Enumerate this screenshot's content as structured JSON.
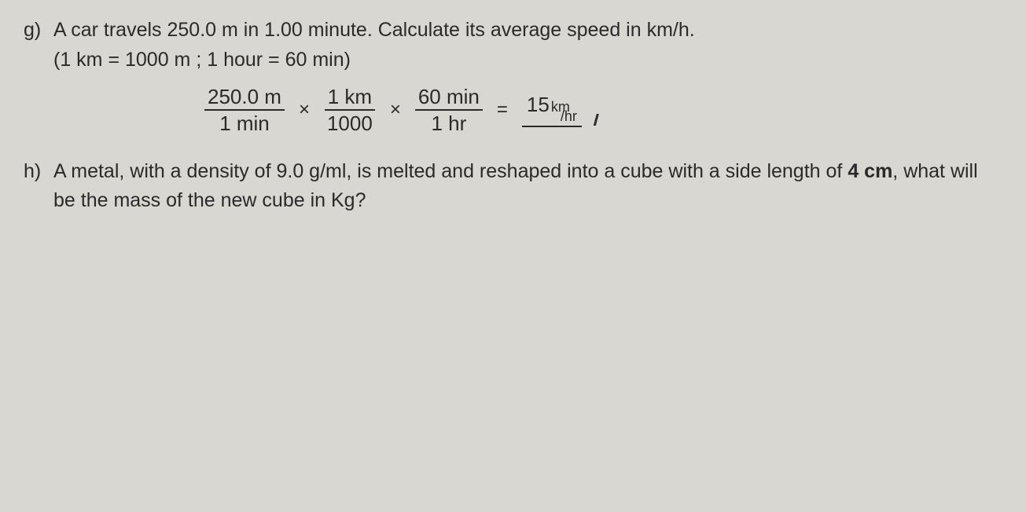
{
  "problems": {
    "g": {
      "label": "g)",
      "text": "A car travels 250.0 m in 1.00 minute. Calculate its average speed in km/h.",
      "sub_text": "(1   km = 1000 m ; 1 hour = 60 min)",
      "work": {
        "frac1": {
          "num": "250.0 m",
          "den": "1 min"
        },
        "op1": "×",
        "frac2": {
          "num": "1 km",
          "den": "1000"
        },
        "op2": "×",
        "frac3": {
          "num": "60 min",
          "den": "1 hr"
        },
        "eq": "=",
        "result_val": "15",
        "result_unit_top": "km",
        "result_unit_bot": "hr",
        "slashes": "//"
      }
    },
    "h": {
      "label": "h)",
      "text_part1": "A metal, with a density of 9.0 g/ml, is melted and reshaped into a cube with a side length of ",
      "bold_part": "4 cm",
      "text_part2": ", what will be the mass of the new cube in Kg?"
    }
  },
  "colors": {
    "background": "#d9d7d2",
    "text": "#2a2a2a"
  },
  "fonts": {
    "printed_size": 25,
    "handwritten_size": 26
  }
}
